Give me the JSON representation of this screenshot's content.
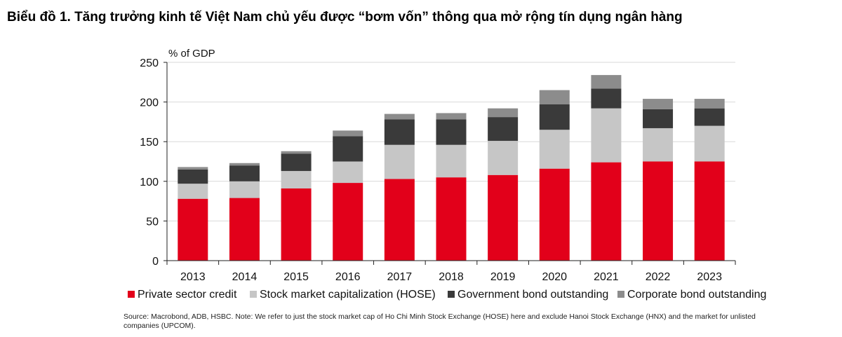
{
  "title": "Biểu đồ 1. Tăng trưởng kinh tế Việt Nam chủ yếu được “bơm vốn” thông qua mở rộng tín dụng ngân hàng",
  "source_note": "Source: Macrobond, ADB, HSBC. Note: We refer to just the stock market cap of Ho Chi Minh Stock Exchange (HOSE) here and exclude Hanoi Stock Exchange (HNX) and the market for unlisted companies (UPCOM).",
  "chart_data": {
    "type": "bar",
    "stacked": true,
    "unit_label": "% of GDP",
    "categories": [
      "2013",
      "2014",
      "2015",
      "2016",
      "2017",
      "2018",
      "2019",
      "2020",
      "2021",
      "2022",
      "2023"
    ],
    "ylim": [
      0,
      250
    ],
    "yticks": [
      0,
      50,
      100,
      150,
      200,
      250
    ],
    "grid": true,
    "legend_position": "bottom",
    "series": [
      {
        "name": "Private sector credit",
        "color": "#e2001a",
        "values": [
          78,
          79,
          91,
          98,
          103,
          105,
          108,
          116,
          124,
          125,
          125
        ]
      },
      {
        "name": "Stock market capitalization (HOSE)",
        "color": "#c6c6c6",
        "values": [
          19,
          21,
          22,
          27,
          43,
          41,
          43,
          49,
          68,
          42,
          45
        ]
      },
      {
        "name": "Government bond outstanding",
        "color": "#3a3a3a",
        "values": [
          18,
          20,
          22,
          32,
          32,
          32,
          30,
          32,
          25,
          24,
          22
        ]
      },
      {
        "name": "Corporate bond outstanding",
        "color": "#8c8c8c",
        "values": [
          3,
          3,
          3,
          7,
          7,
          8,
          11,
          18,
          17,
          13,
          12
        ]
      }
    ]
  }
}
